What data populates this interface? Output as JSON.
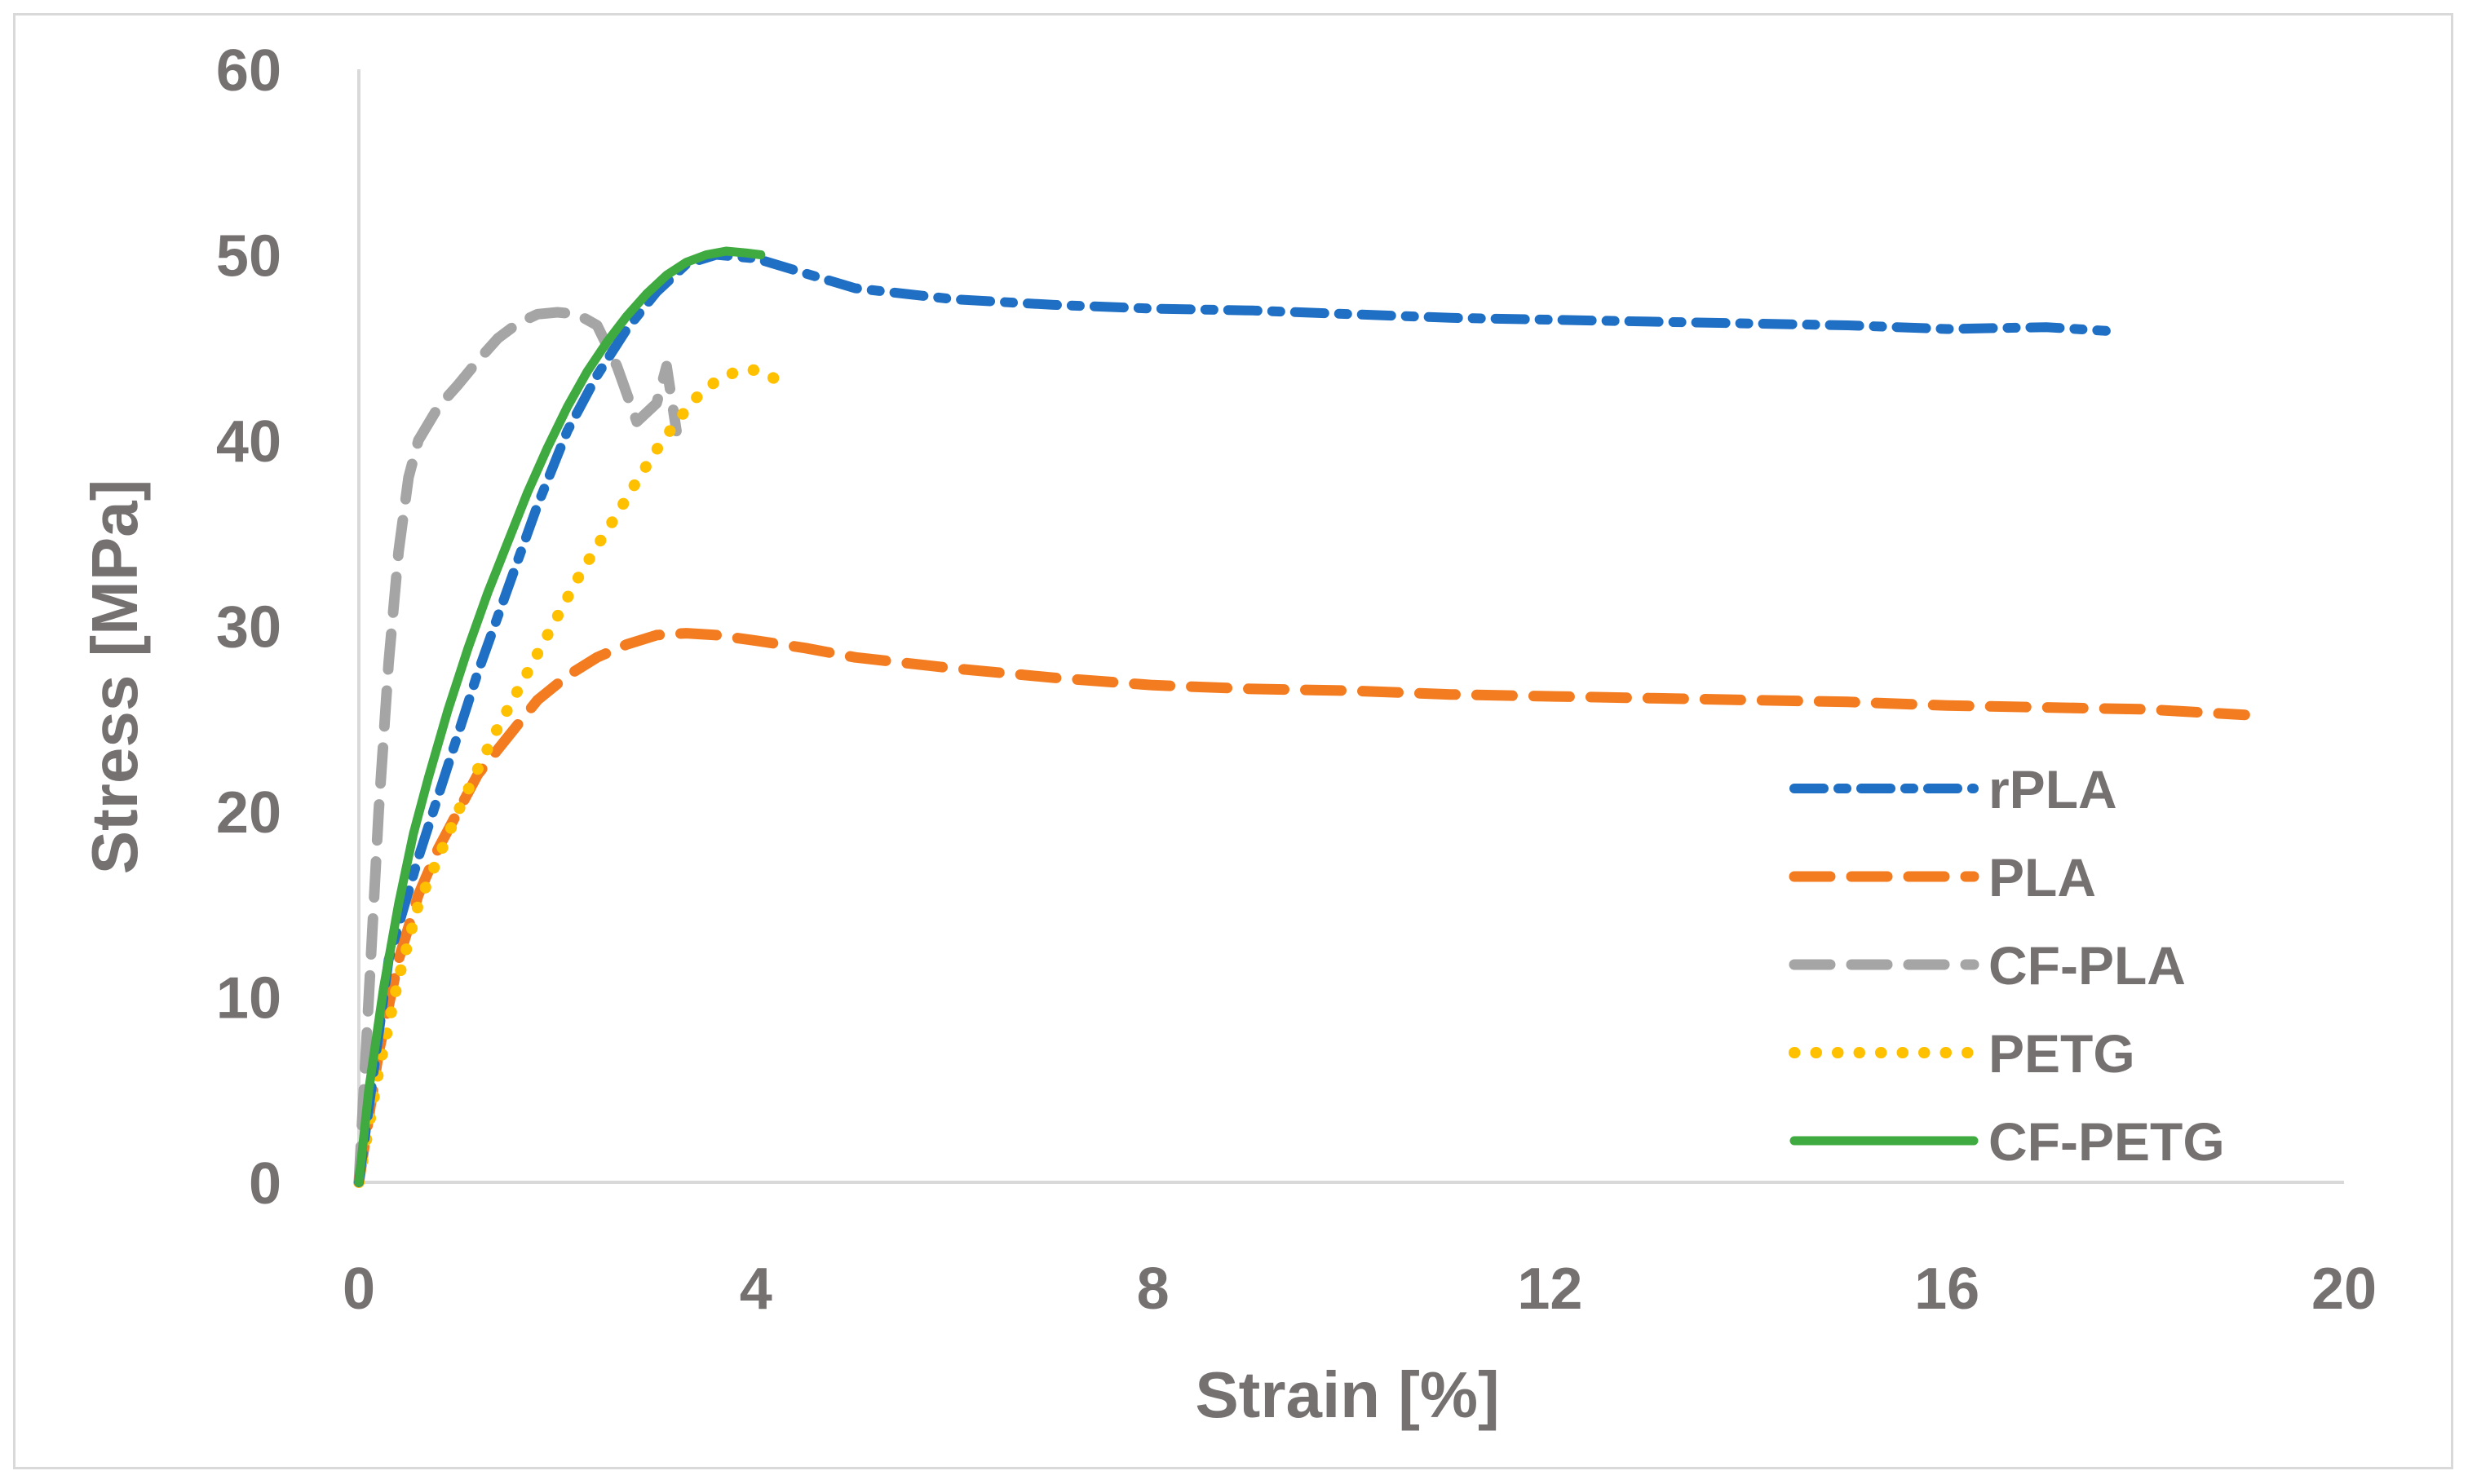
{
  "chart_data": {
    "type": "line",
    "title": "",
    "xlabel": "Strain [%]",
    "ylabel": "Stress [MPa]",
    "xlim": [
      0,
      20
    ],
    "ylim": [
      0,
      60
    ],
    "xticks": [
      0,
      4,
      8,
      12,
      16,
      20
    ],
    "yticks": [
      0,
      10,
      20,
      30,
      40,
      50,
      60
    ],
    "x_tick_labels": [
      "0",
      "4",
      "8",
      "12",
      "16",
      "20"
    ],
    "y_tick_labels": [
      "0",
      "10",
      "20",
      "30",
      "40",
      "50",
      "60"
    ],
    "legend_position": "right",
    "series": [
      {
        "name": "rPLA",
        "color": "#1f6fc4",
        "style": "dash-dot",
        "x": [
          0,
          0.3,
          0.6,
          0.9,
          1.2,
          1.5,
          1.8,
          2.1,
          2.4,
          2.7,
          3.0,
          3.3,
          3.6,
          4.0,
          4.5,
          5.0,
          6.0,
          7.0,
          8.0,
          9.0,
          10.0,
          11.0,
          12.0,
          13.0,
          14.0,
          15.0,
          16.0,
          17.0,
          17.6
        ],
        "y": [
          0,
          12,
          17.5,
          22.5,
          27.5,
          32,
          36.5,
          40.5,
          43.5,
          46,
          48,
          49.5,
          50,
          49.8,
          49,
          48.2,
          47.6,
          47.3,
          47.1,
          47.0,
          46.8,
          46.6,
          46.5,
          46.4,
          46.3,
          46.2,
          46.0,
          46.1,
          45.9
        ]
      },
      {
        "name": "PLA",
        "color": "#f47c20",
        "style": "dashed",
        "x": [
          0,
          0.2,
          0.4,
          0.6,
          0.8,
          1.0,
          1.2,
          1.5,
          1.8,
          2.1,
          2.4,
          2.7,
          3.0,
          3.3,
          3.6,
          4.0,
          4.5,
          5.0,
          6.0,
          7.0,
          8.0,
          9.0,
          10.0,
          11.0,
          12.0,
          13.0,
          14.0,
          15.0,
          16.0,
          17.0,
          18.0,
          19.0
        ],
        "y": [
          0,
          7,
          12,
          15.5,
          18,
          20,
          22,
          24,
          26,
          27.3,
          28.3,
          29,
          29.5,
          29.6,
          29.5,
          29.2,
          28.8,
          28.3,
          27.7,
          27.2,
          26.8,
          26.6,
          26.5,
          26.3,
          26.2,
          26.1,
          26.0,
          25.9,
          25.7,
          25.6,
          25.5,
          25.2
        ]
      },
      {
        "name": "CF-PLA",
        "color": "#a5a5a5",
        "style": "dashed",
        "x": [
          0,
          0.1,
          0.2,
          0.3,
          0.4,
          0.5,
          0.6,
          0.8,
          1.0,
          1.2,
          1.4,
          1.6,
          1.8,
          2.0,
          2.2,
          2.4,
          2.6,
          2.8,
          3.0,
          3.1,
          3.2
        ],
        "y": [
          0,
          10,
          20,
          28,
          34,
          38,
          40,
          41.8,
          43,
          44.3,
          45.5,
          46.3,
          46.8,
          46.9,
          46.8,
          46.2,
          44,
          41,
          42,
          44,
          40.5
        ]
      },
      {
        "name": "PETG",
        "color": "#ffc000",
        "style": "dotted",
        "x": [
          0,
          0.2,
          0.4,
          0.6,
          0.8,
          1.0,
          1.2,
          1.4,
          1.6,
          1.8,
          2.0,
          2.2,
          2.4,
          2.6,
          2.8,
          3.0,
          3.2,
          3.4,
          3.6,
          3.8,
          4.0,
          4.2,
          4.3
        ],
        "y": [
          0,
          6,
          11,
          15,
          17.5,
          20,
          22.3,
          24.5,
          26.5,
          28.5,
          30.5,
          32.5,
          34.3,
          36,
          37.8,
          39.5,
          41,
          42.3,
          43.2,
          43.7,
          43.8,
          43.3,
          42.5
        ]
      },
      {
        "name": "CF-PETG",
        "color": "#3faa3f",
        "style": "solid",
        "x": [
          0,
          0.1,
          0.25,
          0.4,
          0.55,
          0.7,
          0.9,
          1.1,
          1.3,
          1.5,
          1.7,
          1.9,
          2.1,
          2.3,
          2.5,
          2.7,
          2.9,
          3.1,
          3.3,
          3.5,
          3.7,
          3.9,
          4.05
        ],
        "y": [
          0,
          5,
          10.5,
          15,
          18.8,
          21.8,
          25.5,
          28.8,
          31.8,
          34.5,
          37.2,
          39.6,
          41.8,
          43.7,
          45.3,
          46.7,
          47.9,
          48.9,
          49.6,
          50.0,
          50.2,
          50.1,
          50.0
        ]
      }
    ]
  }
}
